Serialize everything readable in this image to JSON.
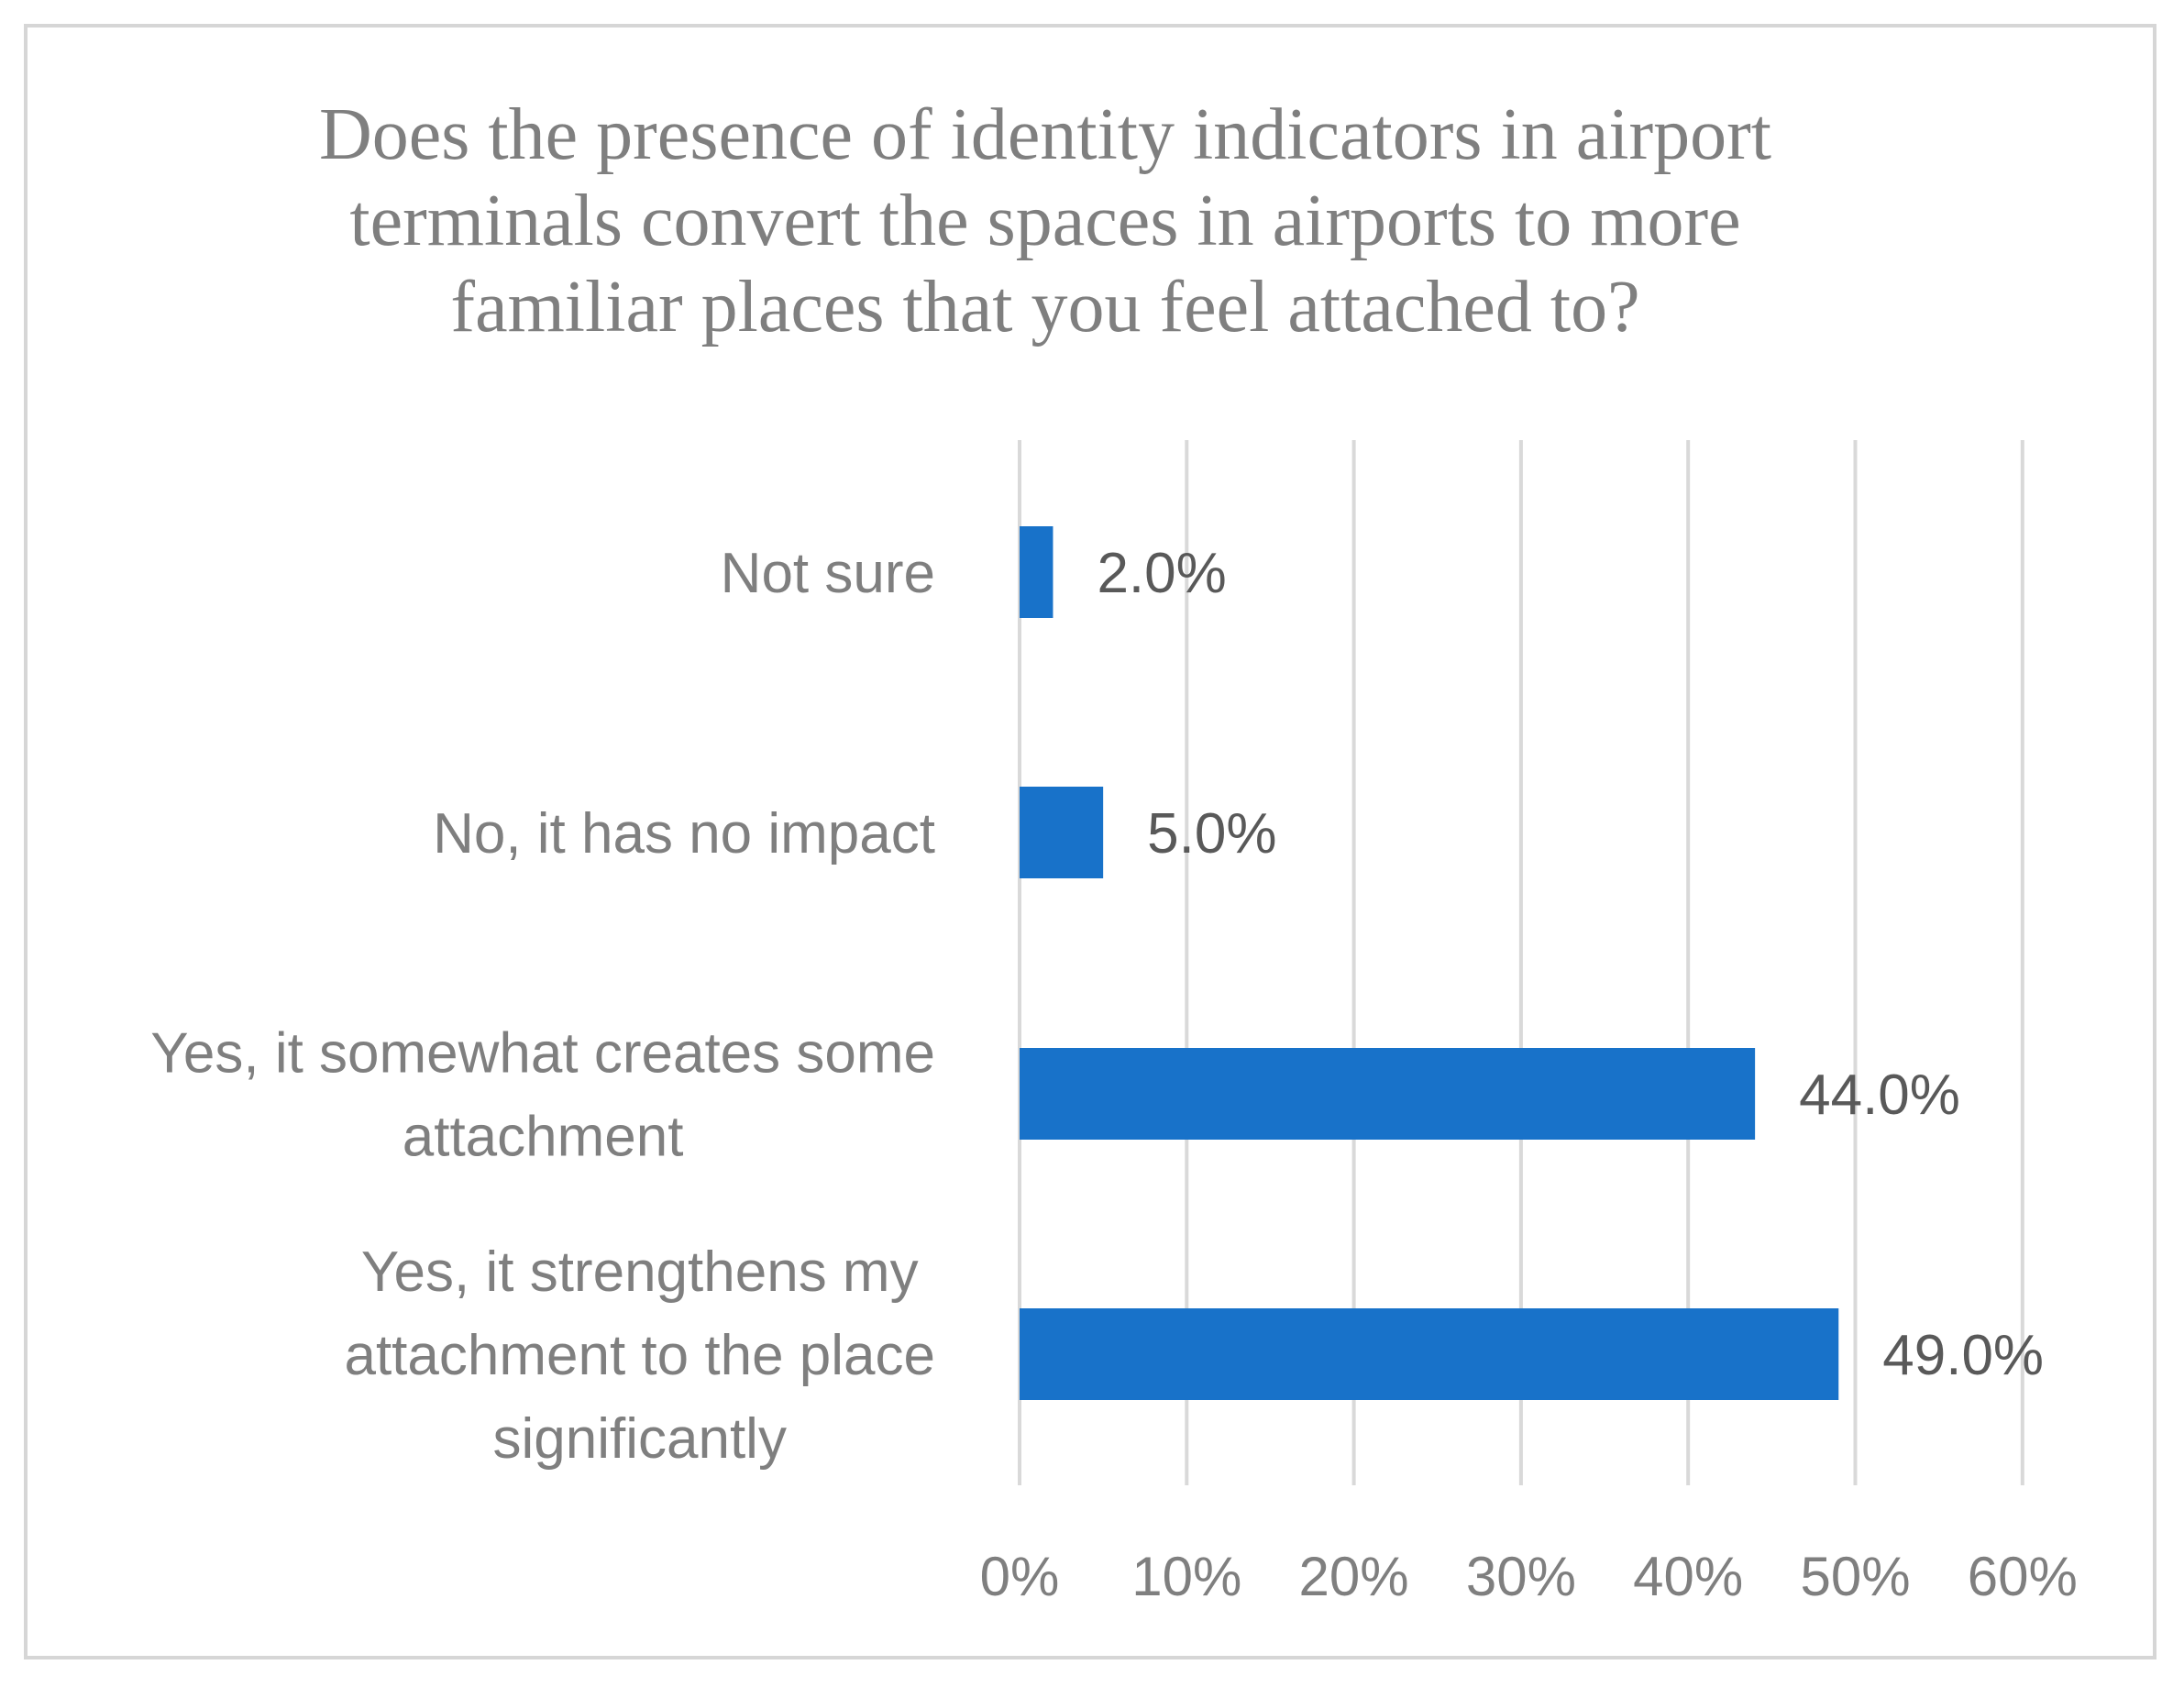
{
  "chart_data": {
    "type": "bar",
    "orientation": "horizontal",
    "title": "Does the presence of identity indicators in airport terminals convert the spaces in airports to more familiar places that you feel attached to?",
    "title_lines": [
      "Does the presence of identity indicators in airport",
      "terminals convert the spaces in airports to more",
      "familiar places that you feel attached to?"
    ],
    "categories": [
      "Not sure",
      "No, it has no impact",
      "Yes, it somewhat creates some attachment",
      "Yes, it strengthens my attachment to the place significantly"
    ],
    "category_label_lines": [
      [
        "Not sure"
      ],
      [
        "No, it has no impact"
      ],
      [
        "Yes, it somewhat creates some",
        "attachment"
      ],
      [
        "Yes, it strengthens my",
        "attachment to the place",
        "significantly"
      ]
    ],
    "values": [
      2.0,
      5.0,
      44.0,
      49.0
    ],
    "data_labels": [
      "2.0%",
      "5.0%",
      "44.0%",
      "49.0%"
    ],
    "xlim": [
      0,
      60
    ],
    "x_ticks": [
      0,
      10,
      20,
      30,
      40,
      50,
      60
    ],
    "x_tick_labels": [
      "0%",
      "10%",
      "20%",
      "30%",
      "40%",
      "50%",
      "60%"
    ],
    "xlabel": "",
    "ylabel": "",
    "grid": true,
    "legend": "none",
    "colors": {
      "bar": "#1872c9",
      "grid": "#d9d9d9",
      "text": "#7f7f7f",
      "data_label": "#595959"
    }
  }
}
